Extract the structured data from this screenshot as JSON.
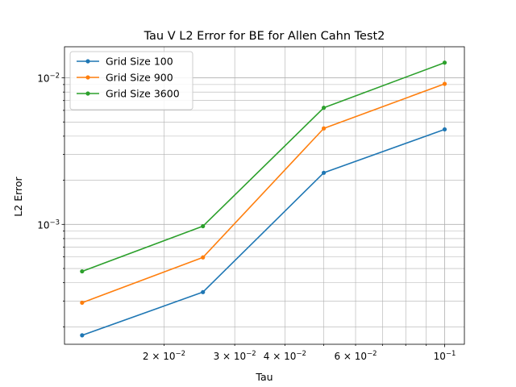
{
  "chart_data": {
    "type": "line",
    "title": "Tau V L2 Error for BE for Allen Cahn Test2",
    "xlabel": "Tau",
    "ylabel": "L2 Error",
    "xscale": "log",
    "yscale": "log",
    "xlim": [
      0.0113,
      0.112
    ],
    "ylim": [
      0.000152,
      0.0163
    ],
    "grid": true,
    "legend_position": "top-left",
    "x": [
      0.0125,
      0.025,
      0.05,
      0.1
    ],
    "series": [
      {
        "name": "Grid Size 100",
        "color": "#1f77b4",
        "values": [
          0.000175,
          0.000345,
          0.00225,
          0.00445
        ]
      },
      {
        "name": "Grid Size 900",
        "color": "#ff7f0e",
        "values": [
          0.000292,
          0.000595,
          0.00452,
          0.0091
        ]
      },
      {
        "name": "Grid Size 3600",
        "color": "#2ca02c",
        "values": [
          0.000478,
          0.000972,
          0.00625,
          0.0127
        ]
      }
    ],
    "x_ticks": [
      {
        "value": 0.02,
        "mantissa": "2",
        "exponent": "−2"
      },
      {
        "value": 0.03,
        "mantissa": "3",
        "exponent": "−2"
      },
      {
        "value": 0.04,
        "mantissa": "4",
        "exponent": "−2"
      },
      {
        "value": 0.06,
        "mantissa": "6",
        "exponent": "−2"
      },
      {
        "value": 0.1,
        "mantissa": "",
        "exponent": "−1"
      }
    ],
    "y_ticks": [
      {
        "value": 0.001,
        "exponent": "−3"
      },
      {
        "value": 0.01,
        "exponent": "−2"
      }
    ]
  }
}
